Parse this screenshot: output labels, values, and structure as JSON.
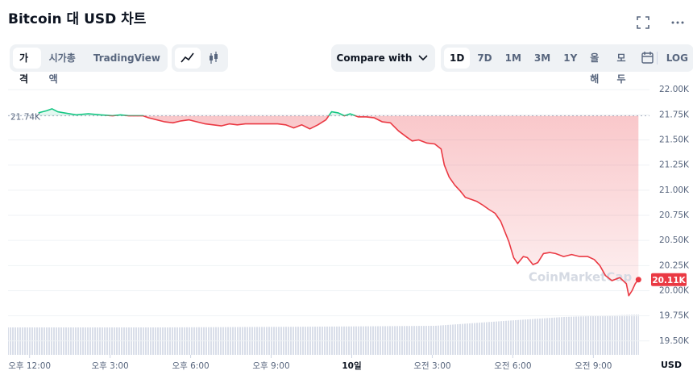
{
  "header": {
    "title": "Bitcoin 대 USD 차트"
  },
  "toolbar": {
    "views": [
      "가격",
      "시가총액",
      "TradingView"
    ],
    "compare": "Compare with",
    "ranges": [
      "1D",
      "7D",
      "1M",
      "3M",
      "1Y",
      "올해",
      "모두"
    ],
    "log": "LOG"
  },
  "chart_data": {
    "type": "line",
    "x": [
      0.33,
      0.63,
      0.84,
      1.05,
      1.29,
      1.74,
      2.19,
      2.64,
      3.09,
      3.39,
      3.69,
      3.99,
      4.23,
      4.44,
      4.74,
      5.04,
      5.34,
      5.64,
      5.94,
      6.24,
      6.54,
      6.84,
      7.14,
      7.44,
      7.74,
      8.04,
      8.34,
      8.64,
      8.94,
      9.24,
      9.54,
      9.84,
      10.14,
      10.44,
      10.74,
      11.04,
      11.25,
      11.49,
      11.73,
      11.94,
      12.24,
      12.54,
      12.84,
      13.14,
      13.44,
      13.74,
      14.04,
      14.25,
      14.49,
      14.79,
      15.09,
      15.33,
      15.45,
      15.63,
      15.84,
      16.05,
      16.23,
      16.44,
      16.65,
      16.89,
      17.1,
      17.34,
      17.55,
      17.73,
      17.85,
      18.03,
      18.18,
      18.39,
      18.54,
      18.75,
      18.93,
      19.14,
      19.38,
      19.59,
      19.89,
      20.19,
      20.49,
      20.79,
      21.03,
      21.24,
      21.45,
      21.69,
      21.99,
      22.23,
      22.32,
      22.44,
      22.56,
      22.68
    ],
    "values": [
      21770,
      21790,
      21810,
      21780,
      21770,
      21750,
      21760,
      21750,
      21740,
      21750,
      21740,
      21740,
      21740,
      21720,
      21700,
      21680,
      21670,
      21690,
      21700,
      21680,
      21660,
      21650,
      21640,
      21660,
      21650,
      21660,
      21660,
      21660,
      21660,
      21660,
      21650,
      21620,
      21650,
      21610,
      21650,
      21700,
      21780,
      21770,
      21740,
      21760,
      21730,
      21730,
      21720,
      21680,
      21670,
      21590,
      21530,
      21490,
      21500,
      21470,
      21460,
      21410,
      21250,
      21130,
      21050,
      20990,
      20930,
      20910,
      20890,
      20850,
      20810,
      20770,
      20690,
      20570,
      20490,
      20330,
      20270,
      20340,
      20330,
      20260,
      20280,
      20370,
      20380,
      20370,
      20340,
      20360,
      20340,
      20340,
      20310,
      20250,
      20150,
      20100,
      20130,
      20070,
      19950,
      20000,
      20070,
      20110
    ],
    "value_labels": [
      null,
      null,
      null,
      null,
      null,
      null,
      null,
      null,
      null,
      null,
      null,
      null,
      null,
      null,
      null,
      null,
      null,
      null,
      null,
      null,
      null,
      null,
      null,
      null,
      null,
      null,
      null,
      null,
      null,
      null,
      null,
      null,
      null,
      null,
      null,
      null,
      null,
      null,
      null,
      null,
      null,
      null,
      null,
      null,
      null,
      null,
      null,
      null,
      null,
      null,
      null,
      null,
      null,
      null,
      null,
      null,
      null,
      null,
      null,
      null,
      null,
      null,
      null,
      null,
      null,
      null,
      null,
      null,
      null,
      null,
      null,
      null,
      null,
      null,
      null,
      null,
      null,
      null,
      null,
      null,
      null,
      null,
      null,
      null,
      null,
      null,
      null,
      "20.11K"
    ],
    "reference": {
      "value": 21740,
      "label": "21.74K"
    },
    "color_above": "#16c784",
    "color_below": "#ea3943",
    "xlim": [
      -0.8,
      23
    ],
    "ylim": [
      19370,
      22090
    ],
    "xticks": [
      {
        "value": 0,
        "label": "오후 12:00"
      },
      {
        "value": 3,
        "label": "오후 3:00"
      },
      {
        "value": 6,
        "label": "오후 6:00"
      },
      {
        "value": 9,
        "label": "오후 9:00"
      },
      {
        "value": 12,
        "label": "10일"
      },
      {
        "value": 15,
        "label": "오전 3:00"
      },
      {
        "value": 18,
        "label": "오전 6:00"
      },
      {
        "value": 21,
        "label": "오전 9:00"
      }
    ],
    "yticks": [
      {
        "value": 22000,
        "label": "22.00K"
      },
      {
        "value": 21750,
        "label": "21.75K"
      },
      {
        "value": 21500,
        "label": "21.50K"
      },
      {
        "value": 21250,
        "label": "21.25K"
      },
      {
        "value": 21000,
        "label": "21.00K"
      },
      {
        "value": 20750,
        "label": "20.75K"
      },
      {
        "value": 20500,
        "label": "20.50K"
      },
      {
        "value": 20250,
        "label": "20.25K"
      },
      {
        "value": 20000,
        "label": "20.00K"
      },
      {
        "value": 19750,
        "label": "19.75K"
      },
      {
        "value": 19500,
        "label": "19.50K"
      }
    ],
    "y_unit": "USD",
    "grid": true,
    "watermark": "CoinMarketCap"
  }
}
